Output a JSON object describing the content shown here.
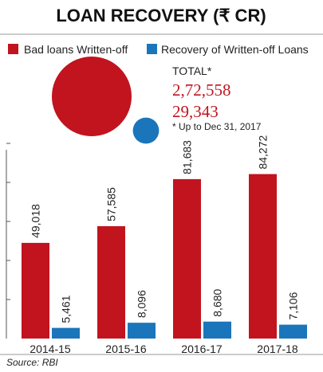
{
  "title": "LOAN RECOVERY (₹ CR)",
  "legend": [
    {
      "label": "Bad loans Written-off",
      "color": "#c1141f"
    },
    {
      "label": "Recovery of Written-off Loans",
      "color": "#1b75bb"
    }
  ],
  "total": {
    "label": "TOTAL*",
    "bad_loans": "2,72,558",
    "recovery": "29,343",
    "footnote": "* Up to Dec 31, 2017"
  },
  "source": "Source: RBI",
  "chart_data": {
    "type": "bar",
    "categories": [
      "2014-15",
      "2015-16",
      "2016-17",
      "2017-18"
    ],
    "series": [
      {
        "name": "Bad loans Written-off",
        "color": "#c1141f",
        "values": [
          49018,
          57585,
          81683,
          84272
        ],
        "labels": [
          "49,018",
          "57,585",
          "81,683",
          "84,272"
        ]
      },
      {
        "name": "Recovery of Written-off Loans",
        "color": "#1b75bb",
        "values": [
          5461,
          8096,
          8680,
          7106
        ],
        "labels": [
          "5,461",
          "8,096",
          "8,680",
          "7,106"
        ]
      }
    ],
    "totals": {
      "bad_loans": 272558,
      "recovery": 29343
    },
    "ylim": [
      0,
      100000
    ],
    "grid": false,
    "legend": "top-left"
  }
}
